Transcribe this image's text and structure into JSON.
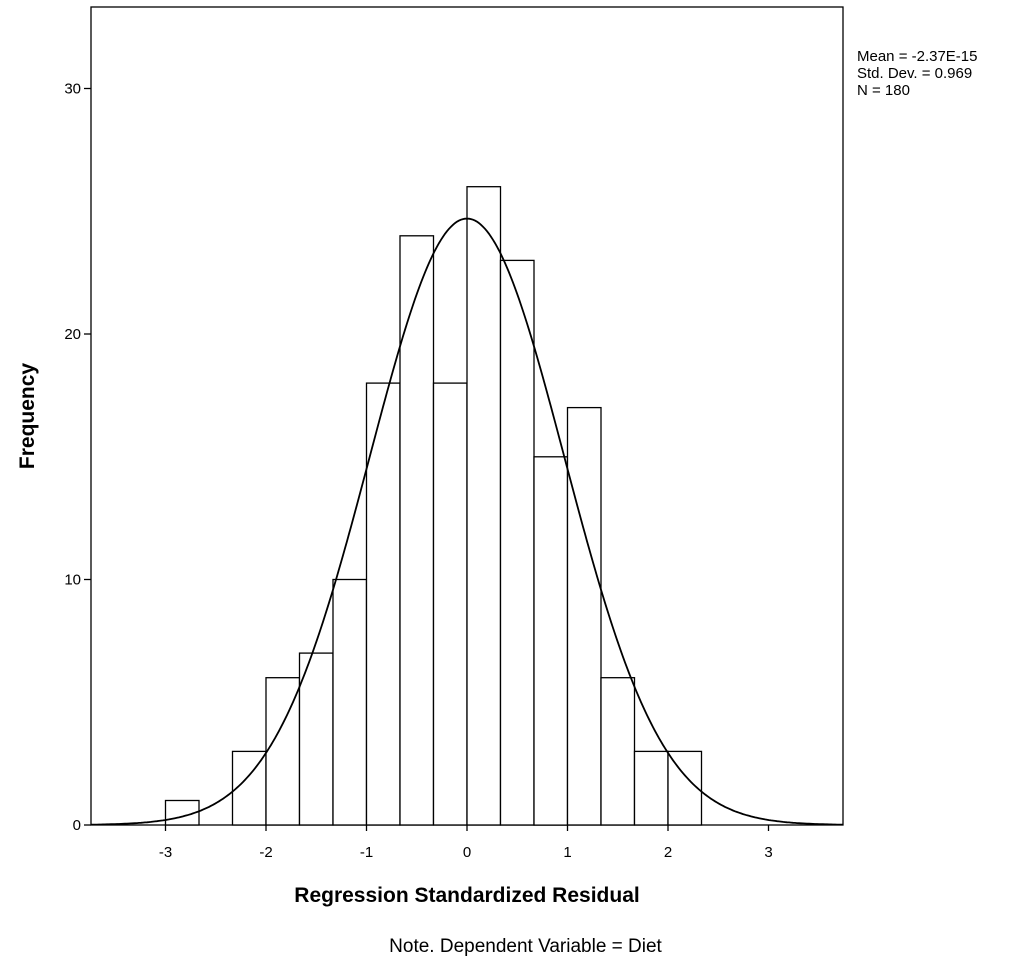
{
  "chart_data": {
    "type": "bar",
    "subtype": "histogram",
    "xlabel": "Regression Standardized Residual",
    "ylabel": "Frequency",
    "xlim": [
      -3.7,
      3.7
    ],
    "ylim": [
      0,
      33
    ],
    "x_ticks": [
      -3,
      -2,
      -1,
      0,
      1,
      2,
      3
    ],
    "y_ticks": [
      0,
      10,
      20,
      30
    ],
    "bin_width": 0.3333,
    "bins": [
      {
        "start": -3.0,
        "end": -2.6667,
        "count": 1
      },
      {
        "start": -2.3333,
        "end": -2.0,
        "count": 3
      },
      {
        "start": -2.0,
        "end": -1.6667,
        "count": 6
      },
      {
        "start": -1.6667,
        "end": -1.3333,
        "count": 7
      },
      {
        "start": -1.3333,
        "end": -1.0,
        "count": 10
      },
      {
        "start": -1.0,
        "end": -0.6667,
        "count": 18
      },
      {
        "start": -0.6667,
        "end": -0.3333,
        "count": 24
      },
      {
        "start": -0.3333,
        "end": 0.0,
        "count": 18
      },
      {
        "start": 0.0,
        "end": 0.3333,
        "count": 26
      },
      {
        "start": 0.3333,
        "end": 0.6667,
        "count": 23
      },
      {
        "start": 0.6667,
        "end": 1.0,
        "count": 15
      },
      {
        "start": 1.0,
        "end": 1.3333,
        "count": 17
      },
      {
        "start": 1.3333,
        "end": 1.6667,
        "count": 6
      },
      {
        "start": 1.6667,
        "end": 2.0,
        "count": 3
      },
      {
        "start": 2.0,
        "end": 2.3333,
        "count": 3
      }
    ],
    "normal_curve": {
      "mean": 0,
      "sd": 0.969,
      "n": 180
    },
    "grid": false
  },
  "stats": {
    "mean": "Mean = -2.37E-15",
    "sd": "Std. Dev. = 0.969",
    "n": "N = 180"
  },
  "note": "Note. Dependent Variable = Diet",
  "colors": {
    "bar_fill": "#ffffff",
    "stroke": "#000000"
  }
}
